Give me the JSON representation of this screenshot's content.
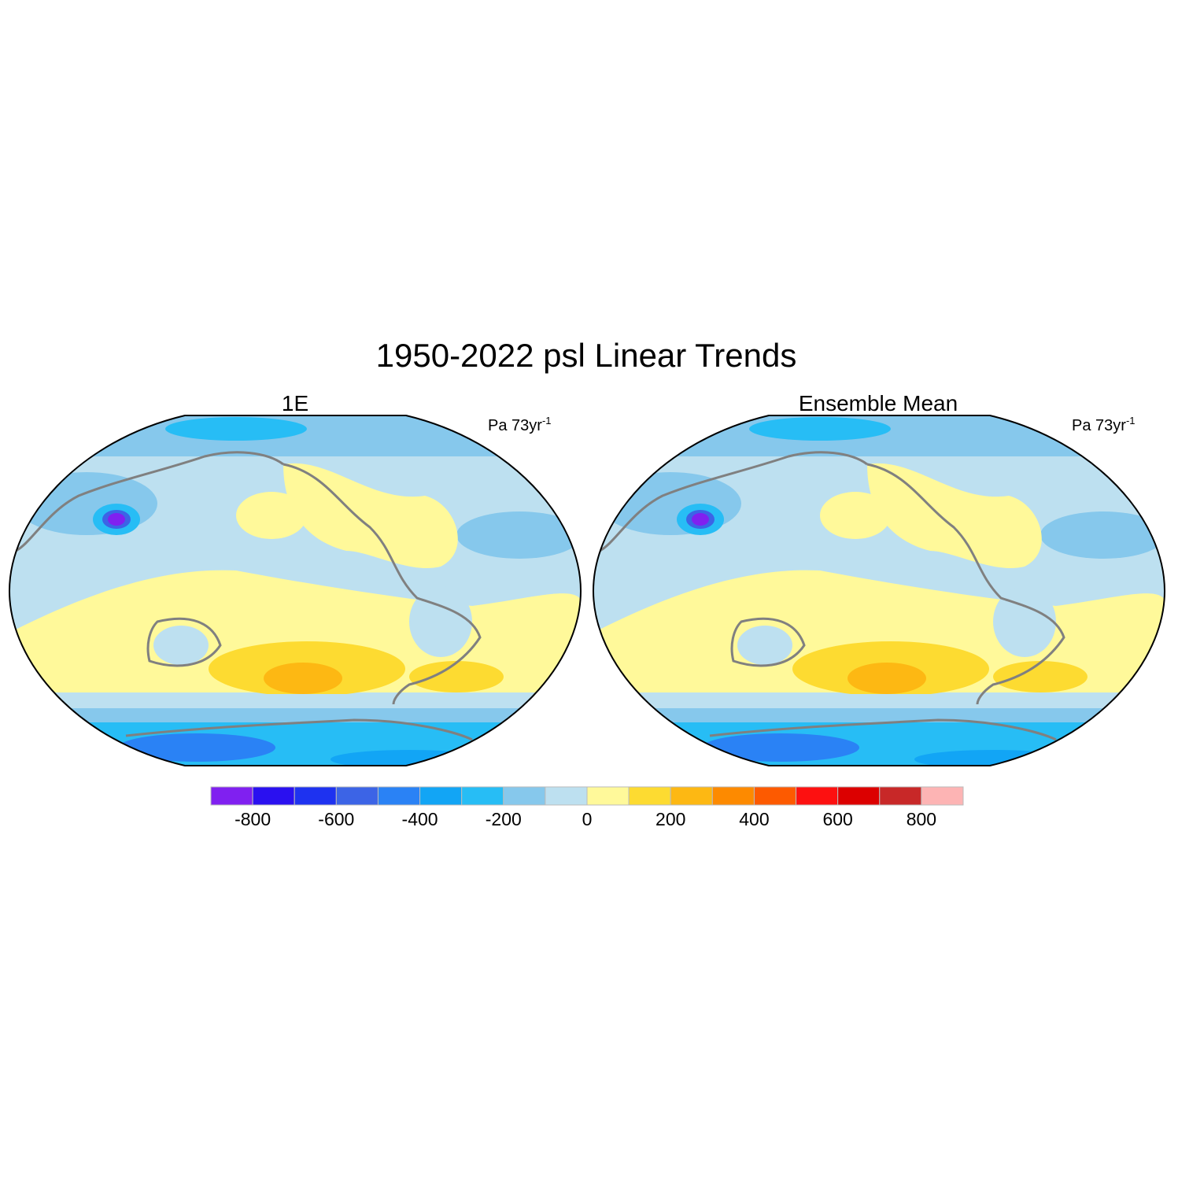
{
  "title": "1950-2022 psl Linear Trends",
  "panels": [
    {
      "title": "1E",
      "units": {
        "text": "Pa 73yr",
        "superscript": "-1"
      }
    },
    {
      "title": "Ensemble Mean",
      "units": {
        "text": "Pa 73yr",
        "superscript": "-1"
      }
    }
  ],
  "colorbar": {
    "range": [
      -900,
      900
    ],
    "colors": [
      "#8020f0",
      "#2a10f0",
      "#1e32f0",
      "#3c64e6",
      "#2a82f5",
      "#12a5f5",
      "#27bdf5",
      "#86c8ec",
      "#bde0f0",
      "#fff99a",
      "#fddb31",
      "#fdb813",
      "#fd8a00",
      "#fd5a00",
      "#fd1010",
      "#dc0000",
      "#c82828",
      "#fdb4b4"
    ],
    "ticks": [
      -800,
      -600,
      -400,
      -200,
      0,
      200,
      400,
      600,
      800
    ]
  }
}
